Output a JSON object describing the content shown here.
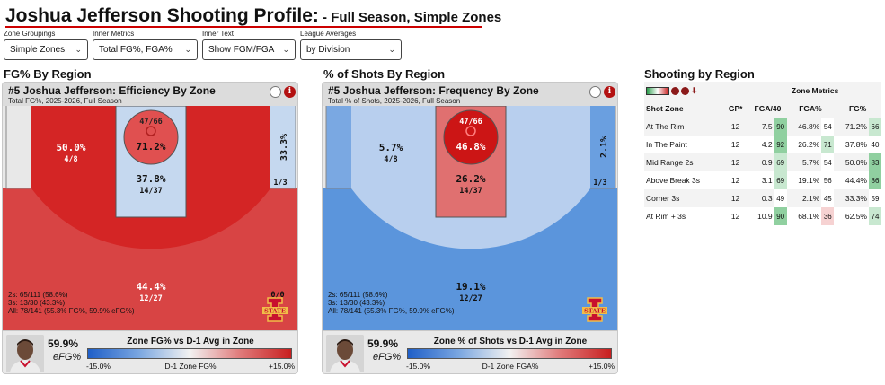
{
  "page": {
    "title_main": "Joshua Jefferson Shooting Profile:",
    "title_dash": " - ",
    "title_link1": "Full Season",
    "title_comma": ", ",
    "title_link2": "Simple Zones"
  },
  "controls": [
    {
      "label": "Zone Groupings",
      "value": "Simple Zones"
    },
    {
      "label": "Inner Metrics",
      "value": "Total FG%, FGA%"
    },
    {
      "label": "Inner Text",
      "value": "Show FGM/FGA"
    },
    {
      "label": "League Averages",
      "value": "by Division"
    }
  ],
  "sections": {
    "left": "FG% By Region",
    "middle": "% of Shots By Region",
    "right": "Shooting by Region"
  },
  "efficiency_card": {
    "title": "#5 Joshua Jefferson: Efficiency By Zone",
    "subtitle": "Total FG%, 2025-2026, Full Season",
    "rim_top": "47/66",
    "rim_pct": "71.2%",
    "paint_pct": "37.8%",
    "paint_fgm": "14/37",
    "mid_pct": "50.0%",
    "mid_fgm": "4/8",
    "corner_pct": "33.3%",
    "corner_fgm": "1/3",
    "three_pct": "44.4%",
    "three_fgm": "12/27",
    "corner_left_fgm": "0/0",
    "summary": [
      "2s: 65/111 (58.6%)",
      "3s: 13/30 (43.3%)",
      "All: 78/141 (55.3% FG%, 59.9% eFG%)"
    ],
    "efg_value": "59.9%",
    "efg_label": "eFG%",
    "legend_title": "Zone FG% vs D-1 Avg in Zone",
    "legend_min": "-15.0%",
    "legend_mid": "D-1 Zone FG%",
    "legend_max": "+15.0%"
  },
  "frequency_card": {
    "title": "#5 Joshua Jefferson: Frequency By Zone",
    "subtitle": "Total % of Shots, 2025-2026, Full Season",
    "rim_top": "47/66",
    "rim_pct": "46.8%",
    "paint_pct": "26.2%",
    "paint_fgm": "14/37",
    "mid_pct": "5.7%",
    "mid_fgm": "4/8",
    "corner_pct": "2.1%",
    "corner_fgm": "1/3",
    "three_pct": "19.1%",
    "three_fgm": "12/27",
    "summary": [
      "2s: 65/111 (58.6%)",
      "3s: 13/30 (43.3%)",
      "All: 78/141 (55.3% FG%, 59.9% eFG%)"
    ],
    "efg_value": "59.9%",
    "efg_label": "eFG%",
    "legend_title": "Zone % of Shots vs D-1 Avg in Zone",
    "legend_min": "-15.0%",
    "legend_mid": "D-1 Zone FGA%",
    "legend_max": "+15.0%"
  },
  "logo_text": "STATE",
  "table": {
    "group_header": "Zone Metrics",
    "columns": [
      "Shot Zone",
      "GP*",
      "FGA/40",
      "FGA%",
      "FG%"
    ],
    "rows": [
      {
        "zone": "At The Rim",
        "gp": "12",
        "fga40": "7.5",
        "fga40_pct": "90",
        "fgap": "46.8%",
        "fgap_pct": "54",
        "fg": "71.2%",
        "fg_pct": "66"
      },
      {
        "zone": "In The Paint",
        "gp": "12",
        "fga40": "4.2",
        "fga40_pct": "92",
        "fgap": "26.2%",
        "fgap_pct": "71",
        "fg": "37.8%",
        "fg_pct": "40"
      },
      {
        "zone": "Mid Range 2s",
        "gp": "12",
        "fga40": "0.9",
        "fga40_pct": "69",
        "fgap": "5.7%",
        "fgap_pct": "54",
        "fg": "50.0%",
        "fg_pct": "83"
      },
      {
        "zone": "Above Break 3s",
        "gp": "12",
        "fga40": "3.1",
        "fga40_pct": "69",
        "fgap": "19.1%",
        "fgap_pct": "56",
        "fg": "44.4%",
        "fg_pct": "86"
      },
      {
        "zone": "Corner 3s",
        "gp": "12",
        "fga40": "0.3",
        "fga40_pct": "49",
        "fgap": "2.1%",
        "fgap_pct": "45",
        "fg": "33.3%",
        "fg_pct": "59"
      },
      {
        "zone": "At Rim + 3s",
        "gp": "12",
        "fga40": "10.9",
        "fga40_pct": "90",
        "fgap": "68.1%",
        "fgap_pct": "36",
        "fg": "62.5%",
        "fg_pct": "74"
      }
    ]
  }
}
